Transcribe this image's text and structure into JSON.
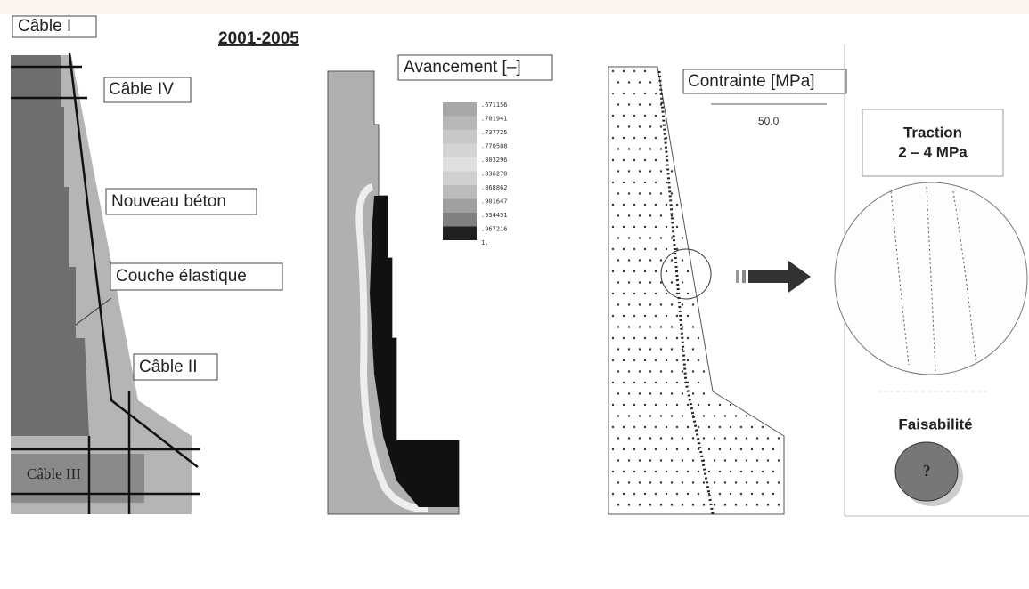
{
  "title": "2001-2005",
  "labels": {
    "cable_1": "Câble I",
    "cable_4": "Câble IV",
    "nouveau_beton": "Nouveau béton",
    "couche": "Couche élastique",
    "cable_2": "Câble II",
    "cable_3": "Câble III"
  },
  "avancement": {
    "title": "Avancement [–]",
    "legend": [
      ".671156",
      ".701941",
      ".737725",
      ".770508",
      ".803296",
      ".836270",
      ".868862",
      ".901647",
      ".934431",
      ".967216",
      "1."
    ]
  },
  "contrainte": {
    "title": "Contrainte [MPa]",
    "scale": "50.0"
  },
  "traction": {
    "line1": "Traction",
    "line2": "2 – 4 MPa"
  },
  "faisabilite": {
    "label": "Faisabilité",
    "symbol": "?"
  }
}
